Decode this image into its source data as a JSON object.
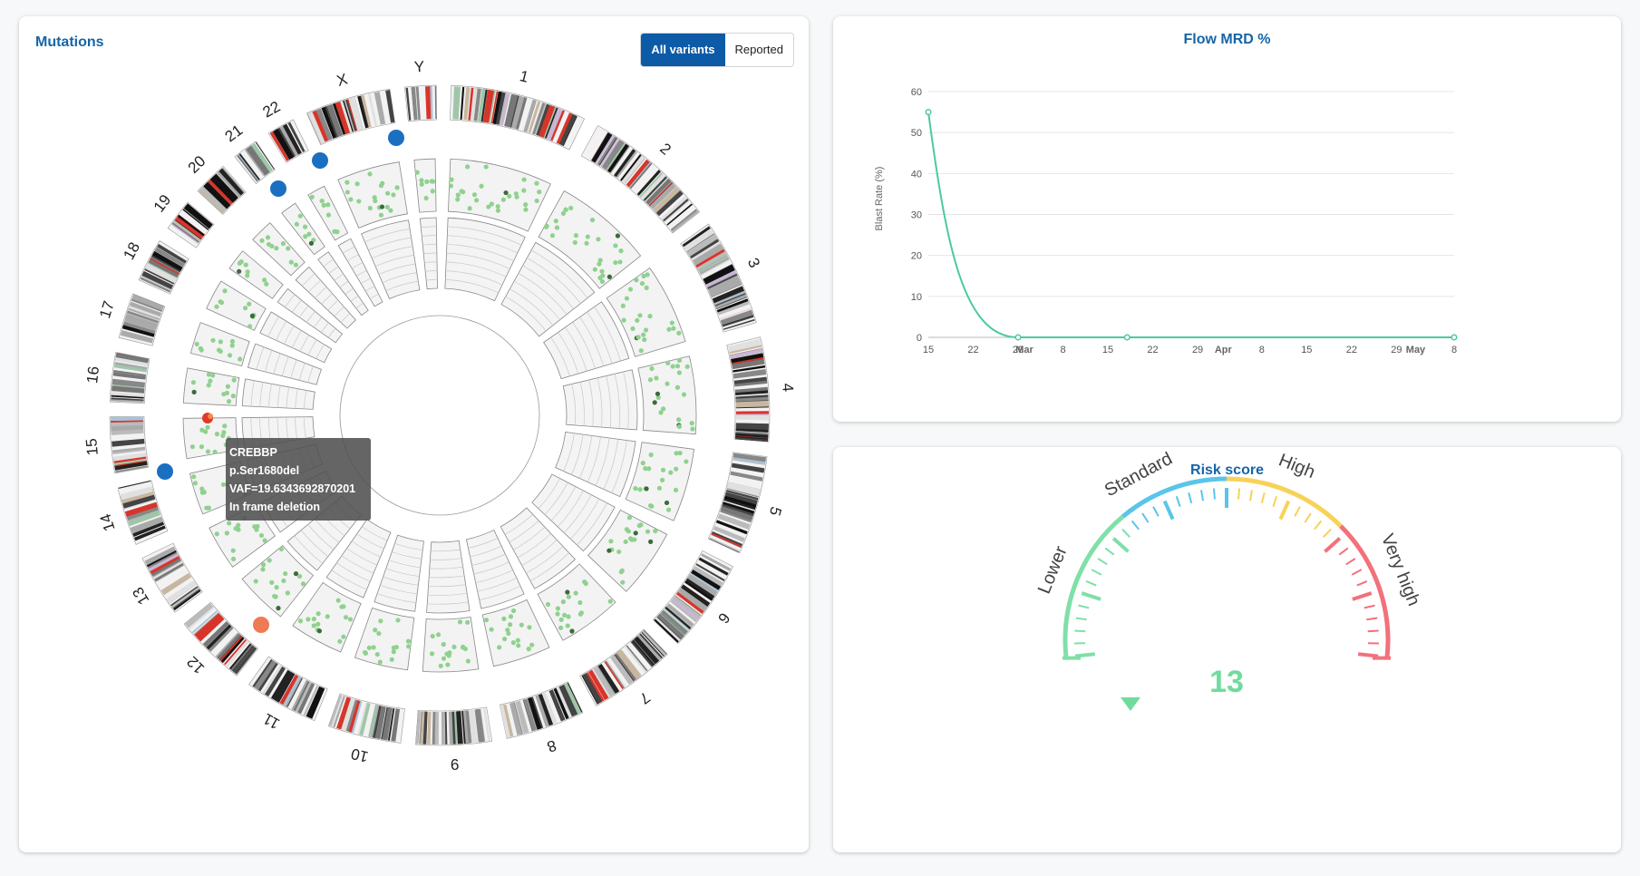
{
  "mutations": {
    "title": "Mutations",
    "toggle": {
      "all_label": "All variants",
      "reported_label": "Reported",
      "selected": "All variants"
    },
    "chromosome_labels": [
      "1",
      "2",
      "3",
      "4",
      "5",
      "6",
      "7",
      "8",
      "9",
      "10",
      "11",
      "12",
      "13",
      "14",
      "15",
      "16",
      "17",
      "18",
      "19",
      "20",
      "21",
      "22",
      "X",
      "Y"
    ],
    "tooltip": {
      "gene": "CREBBP",
      "protein": "p.Ser1680del",
      "vaf": "VAF=19.6343692870201",
      "type": "In frame deletion"
    },
    "colors": {
      "marker_blue": "#1a6fc1",
      "marker_orange": "#ef7b54",
      "point_green": "#8fd18f",
      "highlight_red": "#e03a2a"
    }
  },
  "flow_mrd": {
    "title": "Flow MRD %",
    "chart_data": {
      "type": "line",
      "title": "Flow MRD %",
      "xlabel": "",
      "ylabel": "Blast Rate (%)",
      "ylim": [
        0,
        60
      ],
      "yticks": [
        "0",
        "10",
        "20",
        "30",
        "40",
        "50",
        "60"
      ],
      "xticks": [
        "15",
        "22",
        "29",
        "Mar",
        "8",
        "15",
        "22",
        "29",
        "Apr",
        "8",
        "15",
        "22",
        "29",
        "May",
        "8"
      ],
      "series": [
        {
          "values": [
            {
              "x": "Feb 15",
              "y": 55
            },
            {
              "x": "Mar 1",
              "y": 0
            },
            {
              "x": "Mar 18",
              "y": 0
            },
            {
              "x": "May 8",
              "y": 0
            }
          ]
        }
      ],
      "color": "#4cc9a0",
      "grid": true
    }
  },
  "risk_score": {
    "title": "Risk score",
    "value": "13",
    "value_fraction": 0.1,
    "labels": [
      "Lower",
      "Standard",
      "High",
      "Very high"
    ],
    "colors": {
      "lower": "#7fe0a8",
      "standard": "#59c5ea",
      "high": "#f7d258",
      "very_high": "#f2717b",
      "value": "#6fdc9d"
    }
  }
}
